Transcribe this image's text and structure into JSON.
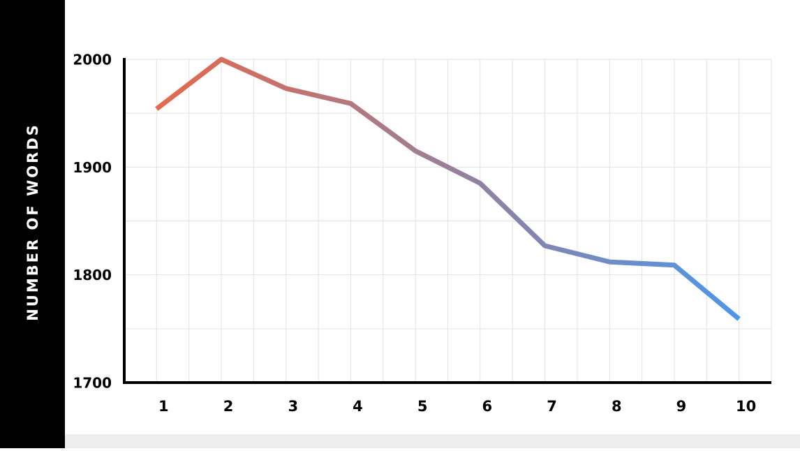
{
  "chart_data": {
    "type": "line",
    "y_label": "NUMBER OF WORDS",
    "x": [
      1,
      2,
      3,
      4,
      5,
      6,
      7,
      8,
      9,
      10
    ],
    "series": [
      {
        "values": [
          1954,
          2000,
          1973,
          1959,
          1915,
          1885,
          1827,
          1812,
          1809,
          1759
        ],
        "color": [
          "#e5694a",
          "#4e96e8"
        ]
      }
    ],
    "xlim": [
      0.5,
      10.5
    ],
    "xticks": [
      1,
      2,
      3,
      4,
      5,
      6,
      7,
      8,
      9,
      10
    ],
    "ylim": [
      1700,
      2000
    ],
    "yticks": [
      1700,
      1800,
      1900,
      2000
    ],
    "grid": true
  }
}
